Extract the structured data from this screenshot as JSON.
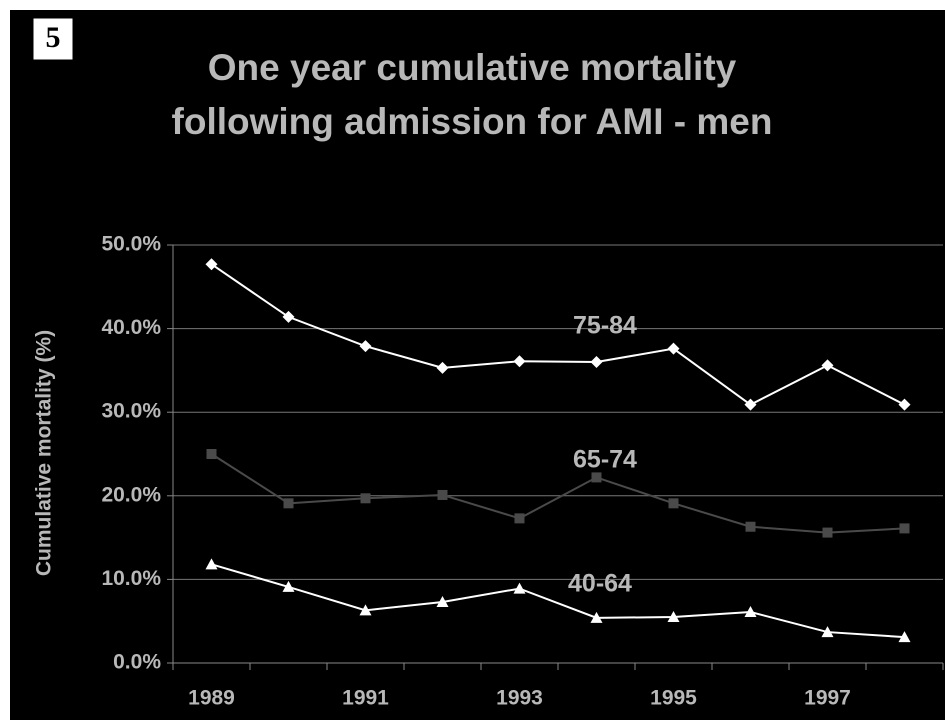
{
  "badge": "5",
  "chart_data": {
    "type": "line",
    "title": [
      "One year cumulative mortality",
      "following  admission for AMI - men"
    ],
    "ylabel": "Cumulative mortality (%)",
    "categories": [
      "1989",
      null,
      "1991",
      null,
      "1993",
      null,
      "1995",
      null,
      "1997",
      null
    ],
    "series": [
      {
        "name": "75-84",
        "color": "#ffffff",
        "marker": "diamond",
        "values": [
          47.7,
          41.4,
          37.9,
          35.3,
          36.1,
          36.0,
          37.6,
          30.9,
          35.6,
          30.9
        ]
      },
      {
        "name": "65-74",
        "color": "#4a4a4a",
        "marker": "square",
        "values": [
          25.0,
          19.1,
          19.7,
          20.1,
          17.3,
          22.2,
          19.1,
          16.3,
          15.6,
          16.1
        ]
      },
      {
        "name": "40-64",
        "color": "#ffffff",
        "marker": "triangle",
        "values": [
          11.8,
          9.1,
          6.3,
          7.3,
          8.9,
          5.4,
          5.5,
          6.1,
          3.7,
          3.1
        ]
      }
    ],
    "ylim": [
      0,
      50
    ],
    "yticks": [
      {
        "value": 0,
        "label": "0.0%"
      },
      {
        "value": 10,
        "label": "10.0%"
      },
      {
        "value": 20,
        "label": "20.0%"
      },
      {
        "value": 30,
        "label": "30.0%"
      },
      {
        "value": 40,
        "label": "40.0%"
      },
      {
        "value": 50,
        "label": "50.0%"
      }
    ],
    "grid": true
  }
}
